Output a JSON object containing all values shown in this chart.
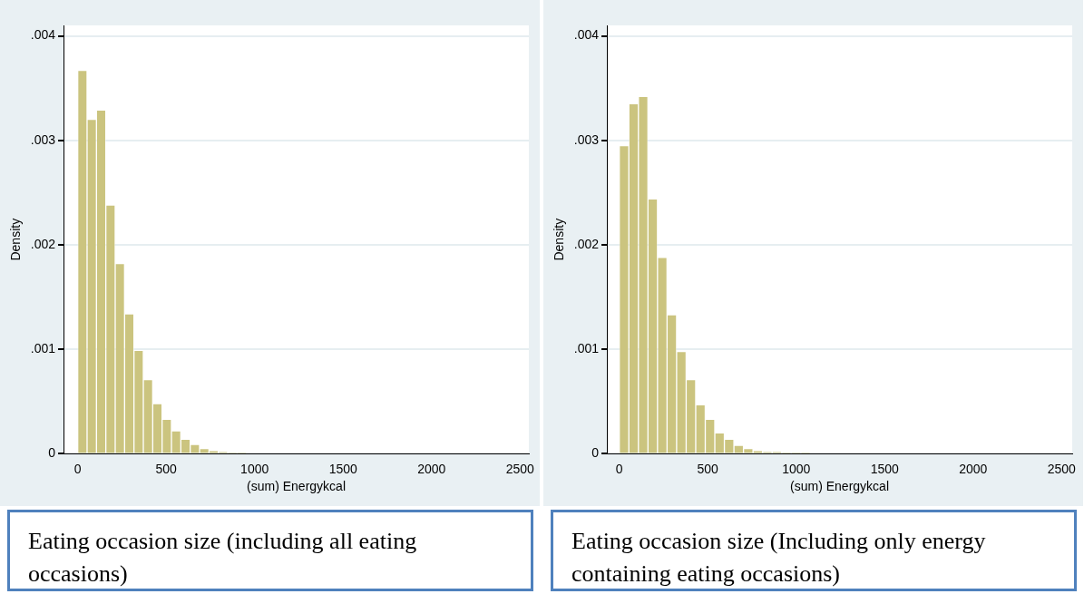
{
  "chart_data": [
    {
      "type": "histogram",
      "bins": [
        0,
        53,
        106,
        159,
        212,
        265,
        318,
        371,
        424,
        477,
        530,
        583,
        636,
        689,
        742,
        795,
        848,
        901,
        954,
        1007,
        1060
      ],
      "values": [
        0.00367,
        0.0032,
        0.00329,
        0.00238,
        0.00182,
        0.00134,
        0.00099,
        0.00071,
        0.00048,
        0.00033,
        0.00022,
        0.00014,
        9e-05,
        5e-05,
        3e-05,
        2e-05,
        1e-05,
        1e-05,
        null,
        null
      ],
      "color": "#cbc47f",
      "xlim": [
        -80,
        2550
      ],
      "xticks": [
        0,
        500,
        1000,
        1500,
        2000,
        2500
      ],
      "ylim": [
        0,
        0.0041
      ],
      "yticks": [
        0,
        {
          "value": 0.001,
          "label": ".001"
        },
        {
          "value": 0.002,
          "label": ".002"
        },
        {
          "value": 0.003,
          "label": ".003"
        },
        {
          "value": 0.004,
          "label": ".004"
        }
      ],
      "xlabel": "(sum) Energykcal",
      "ylabel": "Density",
      "grid": "y",
      "annotations": [
        "Eating occasion size (including all eating occasions)"
      ]
    },
    {
      "type": "histogram",
      "bins": [
        0,
        54,
        108,
        162,
        216,
        270,
        324,
        378,
        432,
        486,
        540,
        594,
        648,
        702,
        756,
        810,
        864,
        918,
        972,
        1026,
        1080
      ],
      "values": [
        0.00295,
        0.00335,
        0.00342,
        0.00244,
        0.00188,
        0.00133,
        0.00098,
        0.00071,
        0.00047,
        0.00033,
        0.0002,
        0.00014,
        8e-05,
        5e-05,
        3e-05,
        2e-05,
        2e-05,
        1e-05,
        1e-05,
        1e-05
      ],
      "color": "#cbc47f",
      "xlim": [
        -70,
        2560
      ],
      "xticks": [
        0,
        500,
        1000,
        1500,
        2000,
        2500
      ],
      "ylim": [
        0,
        0.0041
      ],
      "yticks": [
        0,
        {
          "value": 0.001,
          "label": ".001"
        },
        {
          "value": 0.002,
          "label": ".002"
        },
        {
          "value": 0.003,
          "label": ".003"
        },
        {
          "value": 0.004,
          "label": ".004"
        }
      ],
      "xlabel": "(sum) Energykcal",
      "ylabel": "Density",
      "grid": "y",
      "annotations": [
        "Eating occasion size (Including only energy containing eating occasions)"
      ]
    }
  ]
}
